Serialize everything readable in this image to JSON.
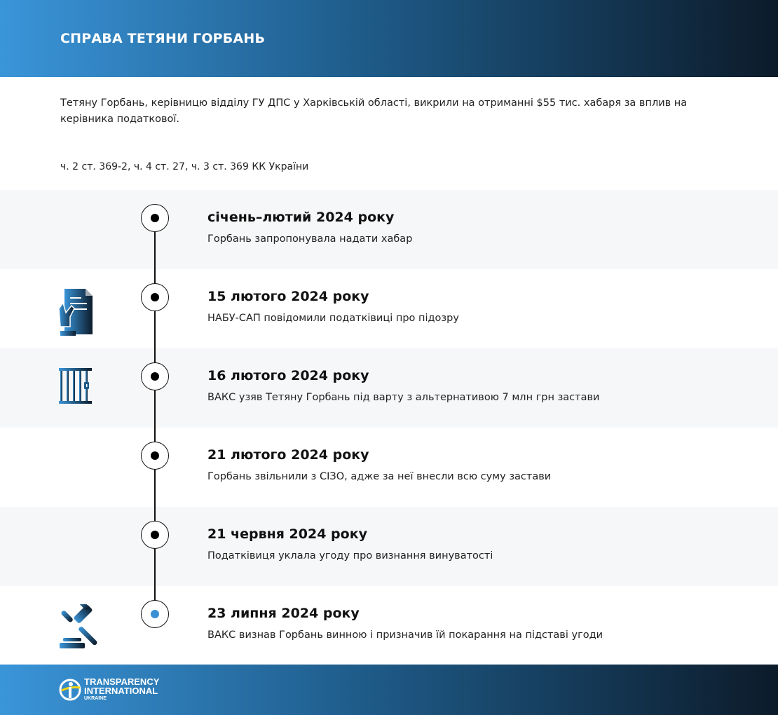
{
  "header": {
    "title": "СПРАВА ТЕТЯНИ ГОРБАНЬ"
  },
  "intro": "Тетяну Горбань, керівницю відділу ГУ ДПС у Харківській області, викрили на отриманні  $55 тис. хабаря за вплив на керівника податкової.",
  "article": "ч. 2 ст. 369-2, ч. 4 ст. 27, ч. 3 ст. 369 КК України",
  "timeline": [
    {
      "date": "січень–лютий 2024 року",
      "text": "Горбань запропонувала надати хабар",
      "icon": ""
    },
    {
      "date": "15 лютого 2024 року",
      "text": "НАБУ-САП повідомили податківиці про підозру",
      "icon": "document-hand-icon"
    },
    {
      "date": "16 лютого 2024 року",
      "text": "ВАКС узяв Тетяну Горбань під варту з альтернативою 7 млн грн застави",
      "icon": "prison-bars-icon"
    },
    {
      "date": "21 лютого 2024 року",
      "text": "Горбань звільнили з СІЗО, адже за неї внесли всю суму застави",
      "icon": ""
    },
    {
      "date": "21 червня 2024 року",
      "text": "Податківиця уклала угоду про визнання винуватості",
      "icon": ""
    },
    {
      "date": "23 липня 2024 року",
      "text": "ВАКС визнав Горбань винною і призначив їй покарання на підставі угоди",
      "icon": "gavel-icon"
    }
  ],
  "footer": {
    "logo_line1": "TRANSPARENCY",
    "logo_line2": "INTERNATIONAL",
    "logo_line3": "UKRAINE"
  },
  "colors": {
    "accent": "#3b8fd3",
    "dark": "#0c1b2a",
    "row_grey": "#f6f7f9"
  }
}
